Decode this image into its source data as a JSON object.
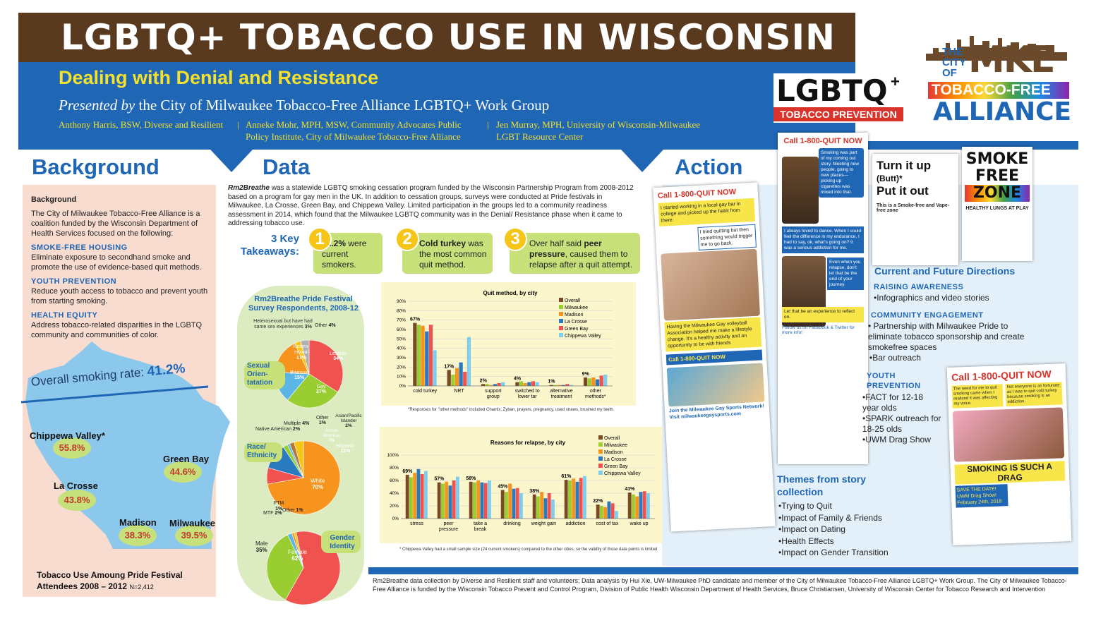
{
  "header": {
    "title": "LGBTQ+ TOBACCO USE IN WISCONSIN",
    "subtitle": "Dealing with Denial and Resistance",
    "presented_by_italic": "Presented by",
    "presented_by_rest": " the City of Milwaukee Tobacco-Free Alliance LGBTQ+ Work Group",
    "author1": "Anthony Harris, BSW, Diverse and Resilient",
    "author2_line1": "Anneke Mohr, MPH, MSW, Community Advocates Public",
    "author2_line2": "Policy Institute, City of Milwaukee Tobacco-Free Alliance",
    "author3_line1": "Jen Murray, MPH, University of Wisconsin-Milwaukee",
    "author3_line2": "LGBT Resource Center",
    "sep": "|"
  },
  "logos": {
    "lgbtq_word": "LGBTQ",
    "lgbtq_plus": "+",
    "lgbtq_sub": "TOBACCO PREVENTION",
    "mke_the": "THE",
    "mke_city": "CITY",
    "mke_of": "OF",
    "mke_mke": "MKE",
    "mke_tf": "TOBACCO-FREE",
    "mke_alliance": "ALLIANCE"
  },
  "sections": {
    "background": "Background",
    "data": "Data",
    "action": "Action"
  },
  "background": {
    "heading": "Background",
    "intro": "The City of Milwaukee Tobacco-Free Alliance is a coalition funded by the Wisconsin Department of Health Services focused on the following:",
    "items": [
      {
        "title": "SMOKE-FREE HOUSING",
        "text": "Eliminate exposure to secondhand smoke and promote the use of evidence-based quit methods."
      },
      {
        "title": "YOUTH PREVENTION",
        "text": "Reduce youth access to tobacco and prevent youth from starting smoking."
      },
      {
        "title": "HEALTH EQUITY",
        "text": "Address tobacco-related disparities in the LGBTQ community and communities of color."
      }
    ],
    "overall_label": "Overall smoking rate: ",
    "overall_value": "41.2%",
    "cities": [
      {
        "name": "Chippewa Valley*",
        "value": "55.8%"
      },
      {
        "name": "Green Bay",
        "value": "44.6%"
      },
      {
        "name": "La Crosse",
        "value": "43.8%"
      },
      {
        "name": "Madison",
        "value": "38.3%"
      },
      {
        "name": "Milwaukee",
        "value": "39.5%"
      }
    ],
    "footer_line1": "Tobacco Use Amoung Pride Festival",
    "footer_line2": "Attendees 2008 – 2012",
    "footer_n": "N=2,412"
  },
  "data_section": {
    "intro_em": "Rm2Breathe",
    "intro_rest": " was a statewide LGBTQ smoking cessation program funded by the Wisconsin Partnership Program from 2008-2012 based on a program for gay men in the UK. In addition to cessation groups, surveys were conducted at Pride festivals in Milwaukee, La Crosse, Green Bay, and Chippewa Valley. Limited participation in the groups led to a community readiness assessment in 2014, which found that the Milwaukee LGBTQ community was in the Denial/ Resistance phase when it came to addressing tobacco use.",
    "takeaways_label_1": "3 Key",
    "takeaways_label_2": "Takeaways:",
    "takeaways": [
      {
        "num": "1",
        "bold": "41.2%",
        "text": " were current smokers."
      },
      {
        "num": "2",
        "bold": "Cold turkey",
        "text": " was the most common quit method."
      },
      {
        "num": "3",
        "bold": "peer pressure",
        "pre": "Over half said ",
        "text": ", caused them to relapse after a quit attempt."
      }
    ],
    "pie_title_1": "Rm2Breathe Pride Festival",
    "pie_title_2": "Survey Respondents, 2008-12",
    "quit_footnote": "*Responses for \"other methods\" included Chantix, Zyban, prayers, pregnancy, used straws, brushed my teeth.",
    "relapse_footnote": "* Chippewa Valley had a small sample size (24 current smokers) compared to the other cities, so the validity of those data points is limited"
  },
  "chart_data": [
    {
      "type": "pie",
      "title": "Sexual Orien- tatation",
      "labels": [
        "Lesbian",
        "Gay",
        "Bisexual",
        "Hetero-sexual",
        "Heterosexual but have had same sex experiences",
        "Other"
      ],
      "values": [
        34,
        27,
        15,
        17,
        3,
        4
      ],
      "value_labels": [
        "34%",
        "27%",
        "15%",
        "17%",
        "3%",
        "4%"
      ],
      "colors": [
        "#f0524f",
        "#9acd32",
        "#5bb6e6",
        "#f7941d",
        "#f5c518",
        "#b0b0b0"
      ]
    },
    {
      "type": "pie",
      "title": "Race/ Ethnicity",
      "labels": [
        "White",
        "African American",
        "Hispanic",
        "Asian/Pacific Islander",
        "Other",
        "Native American",
        "Multiple"
      ],
      "values": [
        70,
        7,
        11,
        2,
        1,
        2,
        4
      ],
      "value_labels": [
        "70%",
        "7%",
        "11%",
        "2%",
        "1%",
        "2%",
        "4%"
      ],
      "colors": [
        "#f7941d",
        "#f0524f",
        "#2a7ac0",
        "#9acd32",
        "#5bb6e6",
        "#b5763b",
        "#f5c518"
      ]
    },
    {
      "type": "pie",
      "title": "Gender Identity",
      "labels": [
        "Female",
        "Male",
        "MTF",
        "FTM",
        "Other"
      ],
      "values": [
        62,
        35,
        2,
        1,
        1
      ],
      "value_labels": [
        "62%",
        "35%",
        "2%",
        "1%",
        "1%"
      ],
      "colors": [
        "#f0524f",
        "#9acd32",
        "#5bb6e6",
        "#f7941d",
        "#f5c518"
      ]
    },
    {
      "type": "bar",
      "title": "Quit method, by city",
      "categories": [
        "cold turkey",
        "NRT",
        "support group",
        "switched to lower tar",
        "alternative treatment",
        "other methods*"
      ],
      "overall_labels": [
        "67%",
        "17%",
        "2%",
        "4%",
        "1%",
        "9%"
      ],
      "ylim": [
        0,
        90
      ],
      "yticks": [
        "0%",
        "10%",
        "20%",
        "30%",
        "40%",
        "50%",
        "60%",
        "70%",
        "80%",
        "90%"
      ],
      "series": [
        {
          "name": "Overall",
          "color": "#7a4a24",
          "values": [
            67,
            17,
            2,
            4,
            1,
            9
          ]
        },
        {
          "name": "Milwaukee",
          "color": "#9acd32",
          "values": [
            65,
            12,
            2,
            5,
            1,
            8
          ]
        },
        {
          "name": "Madison",
          "color": "#f7941d",
          "values": [
            64,
            19,
            1,
            3,
            1,
            9
          ]
        },
        {
          "name": "La Crosse",
          "color": "#2a7ac0",
          "values": [
            58,
            25,
            2,
            4,
            1,
            7
          ]
        },
        {
          "name": "Green Bay",
          "color": "#f0524f",
          "values": [
            65,
            15,
            3,
            5,
            2,
            11
          ]
        },
        {
          "name": "Chippewa Valley",
          "color": "#7fcdee",
          "values": [
            38,
            52,
            4,
            4,
            1,
            12
          ]
        }
      ]
    },
    {
      "type": "bar",
      "title": "Reasons for relapse, by city",
      "categories": [
        "stress",
        "peer pressure",
        "take a break",
        "drinking",
        "weight gain",
        "addiction",
        "cost of tax",
        "wake up"
      ],
      "overall_labels": [
        "69%",
        "57%",
        "58%",
        "45%",
        "38%",
        "61%",
        "22%",
        "41%"
      ],
      "ylim": [
        0,
        100
      ],
      "yticks": [
        "0%",
        "20%",
        "40%",
        "60%",
        "80%",
        "100%"
      ],
      "series": [
        {
          "name": "Overall",
          "color": "#7a4a24",
          "values": [
            69,
            57,
            58,
            45,
            38,
            61,
            22,
            41
          ]
        },
        {
          "name": "Milwaukee",
          "color": "#9acd32",
          "values": [
            65,
            55,
            57,
            42,
            35,
            60,
            20,
            38
          ]
        },
        {
          "name": "Madison",
          "color": "#f7941d",
          "values": [
            72,
            58,
            60,
            55,
            42,
            63,
            18,
            35
          ]
        },
        {
          "name": "La Crosse",
          "color": "#2a7ac0",
          "values": [
            78,
            52,
            57,
            47,
            32,
            58,
            27,
            42
          ]
        },
        {
          "name": "Green Bay",
          "color": "#f0524f",
          "values": [
            70,
            60,
            56,
            48,
            40,
            64,
            24,
            43
          ]
        },
        {
          "name": "Chippewa Valley",
          "color": "#7fcdee",
          "values": [
            75,
            66,
            60,
            40,
            30,
            67,
            12,
            40
          ]
        }
      ]
    }
  ],
  "action": {
    "quit_number": "Call 1-800-QUIT NOW",
    "card_left_text_1": "I started working in a local gay bar in college and picked up the habit from there.",
    "card_left_text_2": "I tried quitting but then something would trigger me to go back.",
    "card_left_text_3": "Having the Milwaukee Gay volleyball Association helped me make a lifestyle change. It's a healthy activity and an opportunity to be with friends",
    "card_left_quit": "Call 1-800-QUIT NOW",
    "card_left_join": "Join the Milwaukee Gay Sports Network! Visit milwaukeegaysports.com",
    "card_mid_text_1": "Smoking was part of my coming out story. Meeting new people, going to new places—picking up cigarettes was mixed into that.",
    "card_mid_text_2": "I always loved to dance. When I could feel the difference in my endurance, I had to say, ok, what's going on? It was a serious addiction for me.",
    "card_mid_text_3": "Even when you relapse, don't let that be the end of your journey.",
    "card_mid_text_4": "Let that be an experience to reflect on.",
    "card_mid_follow": "Follow us on Facebook & Twitter for more info!",
    "poster1_line1": "Turn it up",
    "poster1_line2": "(Butt)*",
    "poster1_line3": "Put it out",
    "poster1_sub": "This is a Smoke-free and Vape-free zone",
    "poster2_line1": "SMOKE",
    "poster2_line2": "FREE",
    "poster2_line3": "ZONE",
    "poster2_sub": "HEALTHY LUNGS AT PLAY",
    "drag_text_1": "The need for me to quit smoking came when I realized it was affecting my voice.",
    "drag_text_2": "Not everyone is as fortunate as I was to quit cold turkey because smoking is an addiction.",
    "drag_headline": "SMOKING IS SUCH A DRAG",
    "drag_save": "SAVE THE DATE!",
    "drag_event": "UWM Drag Show!",
    "drag_date": "February 24th, 2018",
    "current_title": "Current and Future Directions",
    "raising_h": "RAISING AWARENESS",
    "raising_1": "•Infographics and video stories",
    "community_h": "COMMUNITY ENGAGEMENT",
    "community_1": "• Partnership with Milwaukee Pride to eliminate tobacco sponsorship and create smokefree spaces",
    "community_2": "•Bar outreach",
    "youth_h1": "YOUTH",
    "youth_h2": "PREVENTION",
    "youth_items": [
      "•FACT for 12-18 year olds",
      "•SPARK outreach for 18-25 olds",
      "•UWM Drag Show"
    ],
    "themes_title_1": "Themes from story",
    "themes_title_2": "collection",
    "themes": [
      "•Trying to Quit",
      "•Impact of Family & Friends",
      "•Impact on Dating",
      "•Health Effects",
      "•Impact on Gender Transition"
    ]
  },
  "credits": "Rm2Breathe data collection by Diverse and Resilient staff and volunteers; Data analysis by Hui Xie, UW-Milwaukee PhD candidate and member of the City of Milwaukee Tobacco-Free Alliance LGBTQ+ Work Group. The City of Milwaukee Tobacco-Free Alliance is funded by the Wisconsin Tobacco Prevent and Control Program, Division of Public Health Wisconsin Department of Health Services, Bruce Christiansen, University of Wisconsin Center for Tobacco Research and Intervention",
  "colors": {
    "brown": "#5a3a1f",
    "blue": "#1f66b5",
    "yellow": "#f5e12b",
    "green": "#c8e07a",
    "red": "#d9342b"
  }
}
